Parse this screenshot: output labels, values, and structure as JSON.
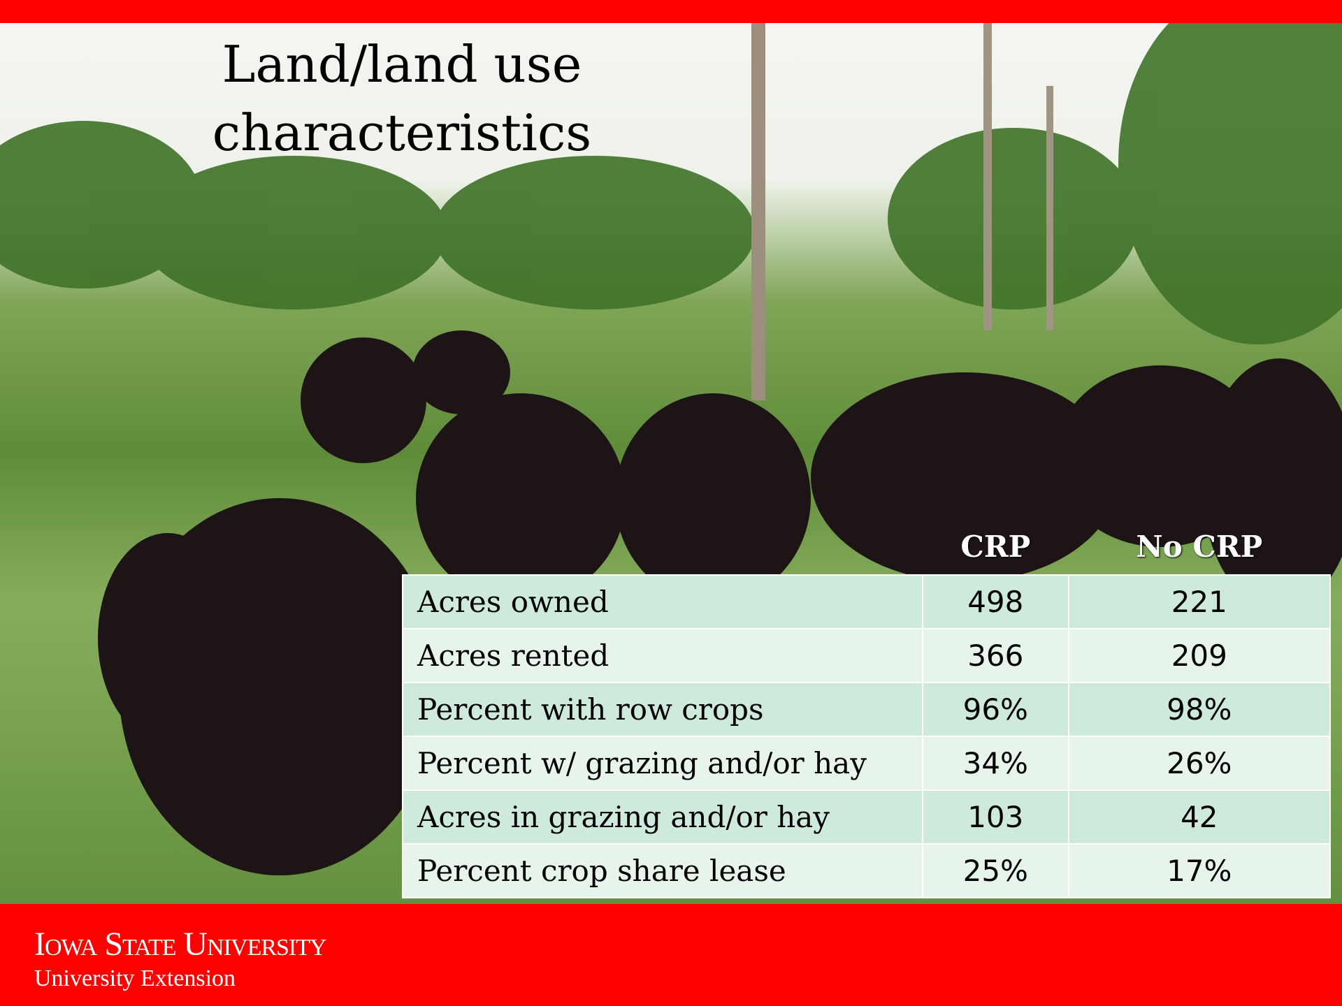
{
  "slide": {
    "title_lines": [
      "Land/land use",
      "characteristics"
    ]
  },
  "table": {
    "header": [
      "CRP",
      "No CRP"
    ],
    "rows": [
      [
        "Acres owned",
        "498",
        "221"
      ],
      [
        "Acres rented",
        "366",
        "209"
      ],
      [
        "Percent with row crops",
        "96%",
        "98%"
      ],
      [
        "Percent w/ grazing and/or hay",
        "34%",
        "26%"
      ],
      [
        "Acres in grazing and/or hay",
        "103",
        "42"
      ],
      [
        "Percent crop share lease",
        "25%",
        "17%"
      ]
    ]
  },
  "footer": {
    "institution": "Iowa State University",
    "unit": "University Extension"
  }
}
